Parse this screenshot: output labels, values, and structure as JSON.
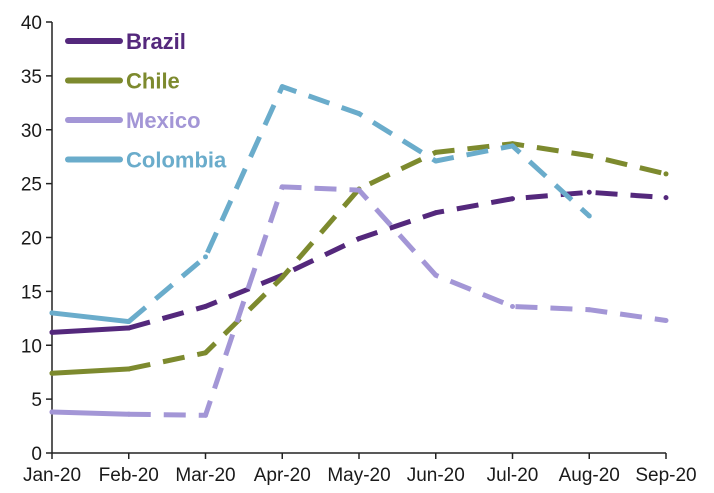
{
  "chart_data": {
    "type": "line",
    "title": "",
    "xlabel": "",
    "ylabel": "",
    "categories": [
      "Jan-20",
      "Feb-20",
      "Mar-20",
      "Apr-20",
      "May-20",
      "Jun-20",
      "Jul-20",
      "Aug-20",
      "Sep-20"
    ],
    "ylim": [
      0,
      40
    ],
    "yticks": [
      0,
      5,
      10,
      15,
      20,
      25,
      30,
      35,
      40
    ],
    "grid": false,
    "legend_position": "top-left",
    "line_style": "solid through Feb-20, dashed afterwards",
    "series": [
      {
        "name": "Brazil",
        "color": "#54287c",
        "values": [
          11.2,
          11.6,
          13.6,
          16.5,
          19.9,
          22.3,
          23.6,
          24.2,
          23.7
        ]
      },
      {
        "name": "Chile",
        "color": "#7d8a2e",
        "values": [
          7.4,
          7.8,
          9.3,
          16.3,
          24.5,
          27.9,
          28.7,
          27.6,
          25.9
        ]
      },
      {
        "name": "Mexico",
        "color": "#a396d6",
        "values": [
          3.8,
          3.6,
          3.5,
          24.7,
          24.4,
          16.5,
          13.6,
          13.3,
          12.3
        ]
      },
      {
        "name": "Colombia",
        "color": "#6aaccb",
        "values": [
          13.0,
          12.2,
          18.2,
          34.0,
          31.5,
          27.1,
          28.5,
          22.0,
          null
        ]
      }
    ]
  }
}
